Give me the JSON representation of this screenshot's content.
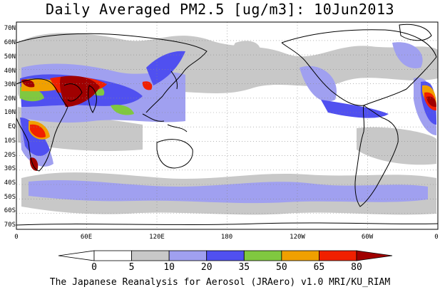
{
  "title": "Daily Averaged PM2.5 [ug/m3]: 10Jun2013",
  "lat_labels": [
    "70N",
    "60N",
    "50N",
    "40N",
    "30N",
    "20N",
    "10N",
    "EQ",
    "10S",
    "20S",
    "30S",
    "40S",
    "50S",
    "60S",
    "70S"
  ],
  "lon_labels": [
    "0",
    "60E",
    "120E",
    "180",
    "120W",
    "60W",
    "0"
  ],
  "colorbar": {
    "levels": [
      "0",
      "5",
      "10",
      "20",
      "35",
      "50",
      "65",
      "80"
    ],
    "colors": [
      "#ffffff",
      "#ffffff",
      "#c8c8c8",
      "#a0a0f0",
      "#5050f0",
      "#80c840",
      "#f0a000",
      "#f02000",
      "#a00000"
    ]
  },
  "credit": "The Japanese Reanalysis for Aerosol (JRAero) v1.0 MRI/KU_RIAM"
}
